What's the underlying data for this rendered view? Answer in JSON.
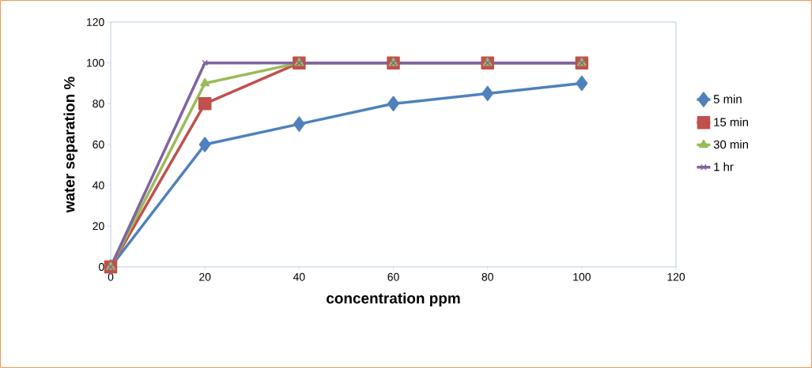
{
  "chart_data": {
    "type": "line",
    "xlabel": "concentration ppm",
    "ylabel": "water  separation %",
    "x": [
      0,
      20,
      40,
      60,
      80,
      100
    ],
    "series": [
      {
        "name": "5 min",
        "color": "#4f81bd",
        "marker": "diamond",
        "values": [
          0,
          60,
          70,
          80,
          85,
          90
        ]
      },
      {
        "name": "15 min",
        "color": "#c0504d",
        "marker": "square",
        "values": [
          0,
          80,
          100,
          100,
          100,
          100
        ]
      },
      {
        "name": "30 min",
        "color": "#9bbb59",
        "marker": "triangle",
        "values": [
          0,
          90,
          100,
          100,
          100,
          100
        ]
      },
      {
        "name": "1 hr",
        "color": "#8064a2",
        "marker": "cross",
        "values": [
          0,
          100,
          100,
          100,
          100,
          100
        ]
      }
    ],
    "xlim": [
      0,
      120
    ],
    "ylim": [
      0,
      120
    ],
    "xticks": [
      0,
      20,
      40,
      60,
      80,
      100,
      120
    ],
    "yticks": [
      0,
      20,
      40,
      60,
      80,
      100,
      120
    ],
    "grid": false,
    "legend": "right"
  }
}
